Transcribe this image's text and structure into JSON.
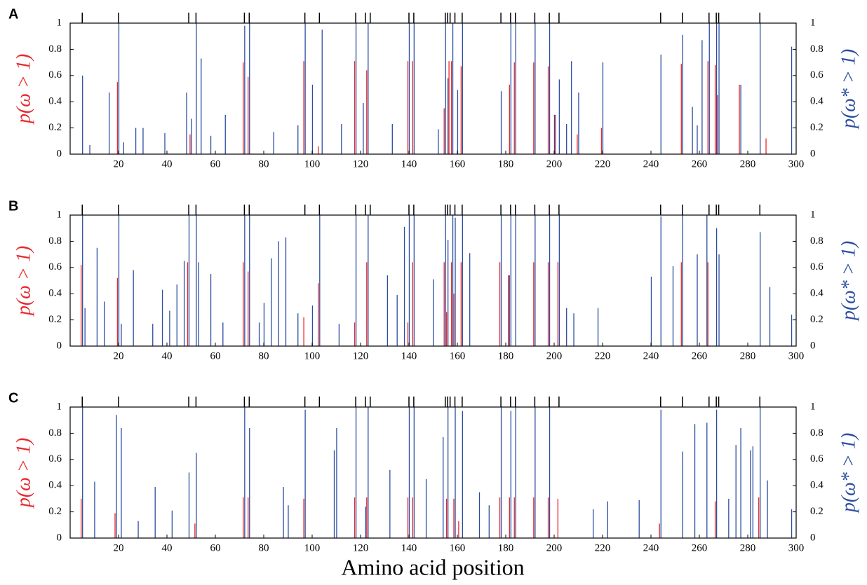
{
  "chart_data": [
    {
      "type": "bar",
      "panel_label": "A",
      "ylabel": "p(ω > 1)",
      "y2label": "p(ω* > 1)",
      "xlim": [
        0,
        300
      ],
      "xticks": [
        20,
        40,
        60,
        80,
        100,
        120,
        140,
        160,
        180,
        200,
        220,
        240,
        260,
        280,
        300
      ],
      "ylim": [
        0,
        1
      ],
      "yticks": [
        0,
        0.2,
        0.4,
        0.6,
        0.8,
        1
      ],
      "y2lim": [
        0,
        1
      ],
      "y2ticks": [
        0,
        0.2,
        0.4,
        0.6,
        0.8,
        1
      ],
      "site_marks": [
        5,
        20,
        49,
        52,
        72,
        74,
        97,
        103,
        118,
        122,
        124,
        140,
        142,
        155,
        156,
        157,
        159,
        162,
        178,
        182,
        184,
        192,
        198,
        202,
        244,
        253,
        264,
        267,
        268,
        285
      ],
      "series": [
        {
          "color": "#e8292f",
          "axis": "y",
          "x": [
            20,
            50,
            72,
            74,
            97,
            103,
            118,
            123,
            140,
            142,
            155,
            157,
            158,
            162,
            182,
            184,
            192,
            198,
            201,
            210,
            220,
            253,
            264,
            267,
            268,
            277,
            288
          ],
          "values": [
            0.55,
            0.15,
            0.7,
            0.59,
            0.71,
            0.06,
            0.71,
            0.64,
            0.71,
            0.71,
            0.35,
            0.71,
            0.71,
            0.67,
            0.53,
            0.7,
            0.7,
            0.67,
            0.3,
            0.15,
            0.2,
            0.69,
            0.71,
            0.68,
            0.45,
            0.53,
            0.12
          ]
        },
        {
          "color": "#2c4da0",
          "axis": "y2",
          "x": [
            5,
            8,
            16,
            20,
            22,
            27,
            30,
            39,
            48,
            50,
            52,
            54,
            58,
            64,
            72,
            74,
            84,
            94,
            97,
            100,
            104,
            112,
            118,
            121,
            123,
            133,
            140,
            142,
            152,
            155,
            156,
            158,
            160,
            162,
            178,
            182,
            184,
            192,
            198,
            200,
            202,
            205,
            207,
            210,
            220,
            244,
            253,
            257,
            259,
            261,
            264,
            267,
            268,
            277,
            285,
            298
          ],
          "values": [
            0.6,
            0.07,
            0.47,
            1,
            0.09,
            0.2,
            0.2,
            0.16,
            0.47,
            0.27,
            1,
            0.73,
            0.14,
            0.3,
            0.98,
            1,
            0.17,
            0.22,
            1,
            0.53,
            0.95,
            0.23,
            1,
            0.39,
            1,
            0.23,
            1,
            1,
            0.19,
            1,
            0.58,
            1,
            0.49,
            1,
            0.48,
            1,
            1,
            1,
            1,
            0.3,
            0.57,
            0.23,
            0.71,
            0.47,
            0.7,
            0.76,
            0.91,
            0.36,
            0.22,
            0.87,
            1,
            1,
            1,
            0.53,
            1,
            0.82
          ]
        }
      ]
    },
    {
      "type": "bar",
      "panel_label": "B",
      "ylabel": "p(ω > 1)",
      "y2label": "p(ω* > 1)",
      "xlim": [
        0,
        300
      ],
      "xticks": [
        20,
        40,
        60,
        80,
        100,
        120,
        140,
        160,
        180,
        200,
        220,
        240,
        260,
        280,
        300
      ],
      "ylim": [
        0,
        1
      ],
      "yticks": [
        0,
        0.2,
        0.4,
        0.6,
        0.8,
        1
      ],
      "y2lim": [
        0,
        1
      ],
      "y2ticks": [
        0,
        0.2,
        0.4,
        0.6,
        0.8,
        1
      ],
      "site_marks": [
        5,
        20,
        49,
        52,
        72,
        74,
        97,
        103,
        118,
        122,
        124,
        140,
        142,
        155,
        156,
        157,
        159,
        162,
        178,
        182,
        184,
        192,
        198,
        202,
        244,
        253,
        264,
        267,
        268,
        285
      ],
      "series": [
        {
          "color": "#e8292f",
          "axis": "y",
          "x": [
            5,
            20,
            49,
            72,
            74,
            97,
            103,
            118,
            123,
            140,
            142,
            155,
            156,
            158,
            159,
            162,
            178,
            182,
            192,
            198,
            202,
            253,
            264
          ],
          "values": [
            0.62,
            0.52,
            0.64,
            0.64,
            0.57,
            0.22,
            0.48,
            0.18,
            0.64,
            0.18,
            0.64,
            0.64,
            0.26,
            0.64,
            0.4,
            0.64,
            0.64,
            0.54,
            0.64,
            0.64,
            0.64,
            0.64,
            0.64
          ]
        },
        {
          "color": "#2c4da0",
          "axis": "y2",
          "x": [
            5,
            6,
            11,
            14,
            20,
            21,
            26,
            34,
            38,
            41,
            44,
            47,
            49,
            52,
            53,
            58,
            63,
            72,
            74,
            78,
            80,
            83,
            86,
            89,
            94,
            100,
            103,
            111,
            118,
            123,
            131,
            135,
            138,
            140,
            142,
            150,
            155,
            156,
            158,
            159,
            162,
            165,
            178,
            181,
            182,
            184,
            192,
            198,
            202,
            205,
            208,
            218,
            240,
            244,
            249,
            253,
            259,
            263,
            267,
            268,
            285,
            289,
            298
          ],
          "values": [
            1,
            0.29,
            0.75,
            0.34,
            1,
            0.17,
            0.58,
            0.17,
            0.43,
            0.27,
            0.47,
            0.65,
            1,
            1,
            0.64,
            0.55,
            0.18,
            1,
            1,
            0.18,
            0.33,
            0.67,
            0.8,
            0.83,
            0.25,
            0.31,
            1,
            0.17,
            1,
            1,
            0.54,
            0.39,
            0.91,
            1,
            1,
            0.51,
            1,
            0.81,
            1,
            0.98,
            1,
            0.71,
            1,
            0.54,
            1,
            1,
            1,
            1,
            1,
            0.29,
            0.25,
            0.29,
            0.53,
            0.99,
            0.61,
            1,
            0.7,
            1,
            0.9,
            0.7,
            0.87,
            0.45,
            0.24
          ]
        }
      ]
    },
    {
      "type": "bar",
      "panel_label": "C",
      "ylabel": "p(ω > 1)",
      "y2label": "p(ω* > 1)",
      "xlabel": "Amino acid position",
      "xlim": [
        0,
        300
      ],
      "xticks": [
        20,
        40,
        60,
        80,
        100,
        120,
        140,
        160,
        180,
        200,
        220,
        240,
        260,
        280,
        300
      ],
      "ylim": [
        0,
        1
      ],
      "yticks": [
        0,
        0.2,
        0.4,
        0.6,
        0.8,
        1
      ],
      "y2lim": [
        0,
        1
      ],
      "y2ticks": [
        0,
        0.2,
        0.4,
        0.6,
        0.8,
        1
      ],
      "site_marks": [
        5,
        20,
        49,
        52,
        72,
        74,
        97,
        103,
        118,
        122,
        124,
        140,
        142,
        155,
        156,
        157,
        159,
        162,
        178,
        182,
        184,
        192,
        198,
        202,
        244,
        253,
        264,
        267,
        268,
        285
      ],
      "series": [
        {
          "color": "#e8292f",
          "axis": "y",
          "x": [
            5,
            19,
            52,
            72,
            74,
            97,
            118,
            123,
            140,
            142,
            156,
            159,
            161,
            178,
            182,
            184,
            192,
            198,
            202,
            244,
            267,
            285
          ],
          "values": [
            0.3,
            0.19,
            0.11,
            0.31,
            0.31,
            0.3,
            0.31,
            0.31,
            0.31,
            0.31,
            0.3,
            0.3,
            0.13,
            0.31,
            0.31,
            0.31,
            0.31,
            0.31,
            0.3,
            0.11,
            0.28,
            0.31
          ]
        },
        {
          "color": "#2c4da0",
          "axis": "y2",
          "x": [
            5,
            10,
            19,
            21,
            28,
            35,
            42,
            49,
            52,
            72,
            74,
            88,
            90,
            97,
            109,
            110,
            118,
            122,
            123,
            132,
            140,
            142,
            147,
            154,
            156,
            159,
            162,
            169,
            173,
            178,
            182,
            184,
            192,
            198,
            216,
            222,
            235,
            244,
            253,
            258,
            263,
            267,
            272,
            275,
            277,
            281,
            282,
            285,
            288,
            298
          ],
          "values": [
            1,
            0.43,
            0.94,
            0.84,
            0.13,
            0.39,
            0.21,
            0.5,
            0.65,
            1,
            0.84,
            0.39,
            0.25,
            0.98,
            0.67,
            0.84,
            1,
            0.24,
            1,
            0.52,
            1,
            1,
            0.45,
            0.77,
            1,
            1,
            0.97,
            0.35,
            0.25,
            1,
            0.97,
            1,
            1,
            1,
            0.22,
            0.28,
            0.29,
            0.98,
            0.66,
            0.87,
            0.88,
            0.98,
            0.3,
            0.71,
            0.84,
            0.67,
            0.7,
            1,
            0.44,
            0.22
          ]
        }
      ]
    }
  ]
}
